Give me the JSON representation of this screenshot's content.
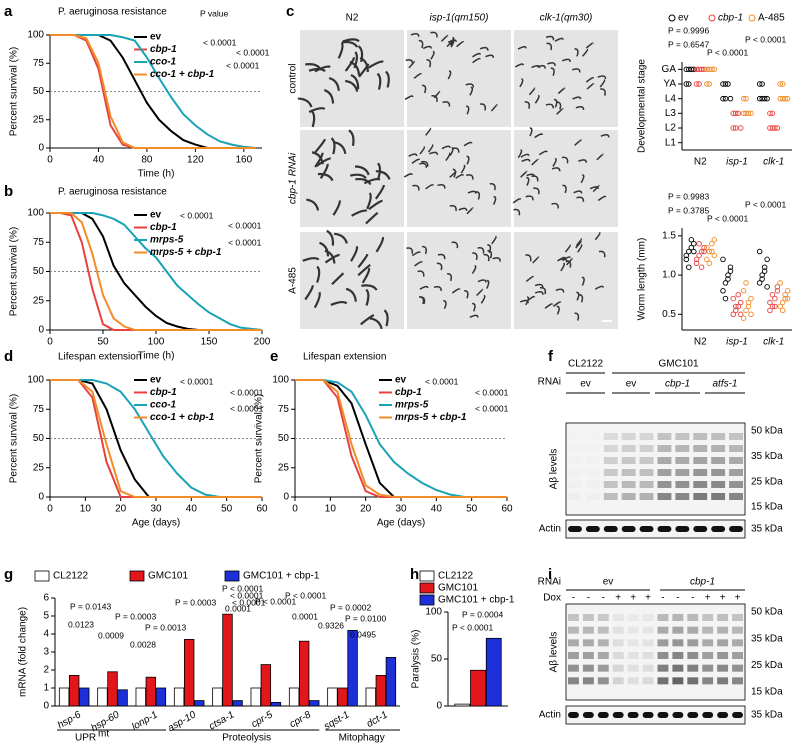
{
  "panel_labels": [
    "a",
    "b",
    "c",
    "d",
    "e",
    "f",
    "g",
    "h",
    "i"
  ],
  "chart_data": [
    {
      "type": "line",
      "title": "P. aeruginosa resistance",
      "xlabel": "Time (h)",
      "ylabel": "Percent survival (%)",
      "x": [
        0,
        10,
        20,
        30,
        40,
        50,
        60,
        70,
        80,
        90,
        100,
        110,
        120,
        130,
        140,
        150,
        160,
        170
      ],
      "series": [
        {
          "name": "ev",
          "color": "#000000",
          "values": [
            100,
            100,
            100,
            100,
            100,
            95,
            80,
            60,
            40,
            25,
            15,
            7,
            3,
            0,
            0,
            0,
            0,
            0
          ]
        },
        {
          "name": "cbp-1",
          "color": "#e8423f",
          "values": [
            100,
            100,
            100,
            95,
            70,
            20,
            3,
            0,
            0,
            0,
            0,
            0,
            0,
            0,
            0,
            0,
            0,
            0
          ]
        },
        {
          "name": "cco-1",
          "color": "#1aa2b5",
          "values": [
            100,
            100,
            100,
            100,
            100,
            100,
            98,
            95,
            80,
            62,
            45,
            30,
            20,
            12,
            6,
            3,
            1,
            0
          ]
        },
        {
          "name": "cco-1 + cbp-1",
          "color": "#f28c28",
          "values": [
            100,
            100,
            100,
            97,
            75,
            28,
            5,
            0,
            0,
            0,
            0,
            0,
            0,
            0,
            0,
            0,
            0,
            0
          ]
        }
      ],
      "xlim": [
        0,
        175
      ],
      "ylim": [
        0,
        100
      ],
      "xticks": [
        0,
        40,
        80,
        120,
        160
      ],
      "yticks": [
        0,
        25,
        50,
        75,
        100
      ],
      "reference_line": 50,
      "annotations": [
        "P value",
        "< 0.0001",
        "< 0.0001",
        "< 0.0001"
      ]
    },
    {
      "type": "line",
      "title": "P. aeruginosa resistance",
      "xlabel": "Time (h)",
      "ylabel": "Percent survival (%)",
      "x": [
        0,
        10,
        20,
        30,
        40,
        50,
        60,
        70,
        80,
        90,
        100,
        110,
        120,
        130,
        140,
        150,
        160,
        170,
        180,
        190,
        200
      ],
      "series": [
        {
          "name": "ev",
          "color": "#000000",
          "values": [
            100,
            100,
            100,
            100,
            95,
            80,
            55,
            40,
            30,
            20,
            12,
            6,
            3,
            1,
            0,
            0,
            0,
            0,
            0,
            0,
            0
          ]
        },
        {
          "name": "cbp-1",
          "color": "#e8423f",
          "values": [
            100,
            100,
            98,
            75,
            35,
            5,
            0,
            0,
            0,
            0,
            0,
            0,
            0,
            0,
            0,
            0,
            0,
            0,
            0,
            0,
            0
          ]
        },
        {
          "name": "mrps-5",
          "color": "#1aa2b5",
          "values": [
            100,
            100,
            100,
            100,
            100,
            98,
            95,
            90,
            80,
            70,
            62,
            50,
            38,
            30,
            22,
            15,
            10,
            5,
            2,
            1,
            0
          ]
        },
        {
          "name": "mrps-5 + cbp-1",
          "color": "#f28c28",
          "values": [
            100,
            100,
            100,
            92,
            65,
            30,
            10,
            3,
            0,
            0,
            0,
            0,
            0,
            0,
            0,
            0,
            0,
            0,
            0,
            0,
            0
          ]
        }
      ],
      "xlim": [
        0,
        200
      ],
      "ylim": [
        0,
        100
      ],
      "xticks": [
        0,
        50,
        100,
        150,
        200
      ],
      "yticks": [
        0,
        25,
        50,
        75,
        100
      ],
      "reference_line": 50,
      "annotations": [
        "< 0.0001",
        "< 0.0001",
        "< 0.0001"
      ]
    },
    {
      "type": "strip",
      "ylabel": "Developmental stage",
      "categories": [
        "N2",
        "isp-1",
        "clk-1"
      ],
      "series": [
        {
          "name": "ev",
          "color": "#000000",
          "values": [
            [
              6,
              6,
              6,
              6,
              5,
              5
            ],
            [
              5,
              5,
              5,
              4,
              4,
              4
            ],
            [
              5,
              5,
              4,
              4,
              4,
              4
            ]
          ]
        },
        {
          "name": "cbp-1",
          "color": "#e8423f",
          "values": [
            [
              6,
              6,
              6,
              6,
              5,
              5
            ],
            [
              3,
              3,
              3,
              2,
              2,
              2
            ],
            [
              3,
              3,
              2,
              2,
              2,
              2
            ]
          ]
        },
        {
          "name": "A-485",
          "color": "#f28c28",
          "values": [
            [
              6,
              6,
              6,
              6,
              5,
              5
            ],
            [
              4,
              4,
              3,
              3,
              3,
              3
            ],
            [
              5,
              5,
              4,
              4,
              4,
              4
            ]
          ]
        }
      ],
      "ylim": [
        0.5,
        6.5
      ],
      "yticks": [
        {
          "value": 1,
          "label": "L1"
        },
        {
          "value": 2,
          "label": "L2"
        },
        {
          "value": 3,
          "label": "L3"
        },
        {
          "value": 4,
          "label": "L4"
        },
        {
          "value": 5,
          "label": "YA"
        },
        {
          "value": 6,
          "label": "GA"
        }
      ],
      "annotations": [
        "P = 0.9996",
        "P = 0.6547",
        "P < 0.0001",
        "P < 0.0001"
      ]
    },
    {
      "type": "strip",
      "ylabel": "Worm length (mm)",
      "categories": [
        "N2",
        "isp-1",
        "clk-1"
      ],
      "series": [
        {
          "name": "ev",
          "color": "#000000",
          "values": [
            [
              1.2,
              1.3,
              1.35,
              1.4,
              1.25,
              1.1,
              1.45,
              1.3
            ],
            [
              0.8,
              0.9,
              1.0,
              1.1,
              1.2,
              0.7,
              0.95,
              1.05
            ],
            [
              0.9,
              1.0,
              1.1,
              1.2,
              1.3,
              0.95,
              1.05,
              0.85
            ]
          ]
        },
        {
          "name": "cbp-1",
          "color": "#e8423f",
          "values": [
            [
              1.15,
              1.25,
              1.3,
              1.35,
              1.2,
              1.4,
              1.1,
              1.3
            ],
            [
              0.5,
              0.55,
              0.6,
              0.65,
              0.7,
              0.6,
              0.75,
              0.5
            ],
            [
              0.55,
              0.6,
              0.7,
              0.8,
              0.65,
              0.75,
              0.6,
              0.85
            ]
          ]
        },
        {
          "name": "A-485",
          "color": "#f28c28",
          "values": [
            [
              1.2,
              1.3,
              1.4,
              1.25,
              1.35,
              1.15,
              1.3,
              1.45
            ],
            [
              0.45,
              0.55,
              0.65,
              0.7,
              0.8,
              0.9,
              0.6,
              0.5
            ],
            [
              0.6,
              0.65,
              0.7,
              0.8,
              0.9,
              0.55,
              0.75,
              0.7
            ]
          ]
        }
      ],
      "ylim": [
        0.3,
        1.6
      ],
      "yticks": [
        0.5,
        {
          "value": 1,
          "label": "1.0"
        },
        1.5
      ],
      "annotations": [
        "P = 0.9983",
        "P = 0.3785",
        "P < 0.0001",
        "P < 0.0001"
      ]
    },
    {
      "type": "line",
      "title": "Lifespan extension",
      "xlabel": "Age (days)",
      "ylabel": "Percent survival (%)",
      "x": [
        0,
        4,
        8,
        12,
        16,
        20,
        24,
        28,
        32,
        36,
        40,
        44,
        48,
        52,
        56,
        60
      ],
      "series": [
        {
          "name": "ev",
          "color": "#000000",
          "values": [
            100,
            100,
            100,
            97,
            75,
            40,
            15,
            0,
            0,
            0,
            0,
            0,
            0,
            0,
            0,
            0
          ]
        },
        {
          "name": "cbp-1",
          "color": "#e8423f",
          "values": [
            100,
            100,
            100,
            85,
            30,
            0,
            0,
            0,
            0,
            0,
            0,
            0,
            0,
            0,
            0,
            0
          ]
        },
        {
          "name": "cco-1",
          "color": "#1aa2b5",
          "values": [
            100,
            100,
            100,
            100,
            97,
            90,
            75,
            55,
            35,
            20,
            8,
            2,
            0,
            0,
            0,
            0
          ]
        },
        {
          "name": "cco-1 + cbp-1",
          "color": "#f28c28",
          "values": [
            100,
            100,
            100,
            90,
            45,
            5,
            0,
            0,
            0,
            0,
            0,
            0,
            0,
            0,
            0,
            0
          ]
        }
      ],
      "xlim": [
        0,
        60
      ],
      "ylim": [
        0,
        100
      ],
      "xticks": [
        0,
        10,
        20,
        30,
        40,
        50,
        60
      ],
      "yticks": [
        0,
        25,
        50,
        75,
        100
      ],
      "reference_line": 50,
      "annotations": [
        "< 0.0001",
        "< 0.0001",
        "< 0.0001"
      ]
    },
    {
      "type": "line",
      "title": "Lifespan extension",
      "xlabel": "Age (days)",
      "ylabel": "Percent survival (%)",
      "x": [
        0,
        4,
        8,
        12,
        16,
        20,
        24,
        28,
        32,
        36,
        40,
        44,
        48,
        52,
        56,
        60
      ],
      "series": [
        {
          "name": "ev",
          "color": "#000000",
          "values": [
            100,
            100,
            100,
            95,
            80,
            45,
            12,
            0,
            0,
            0,
            0,
            0,
            0,
            0,
            0,
            0
          ]
        },
        {
          "name": "cbp-1",
          "color": "#e8423f",
          "values": [
            100,
            100,
            100,
            85,
            35,
            5,
            0,
            0,
            0,
            0,
            0,
            0,
            0,
            0,
            0,
            0
          ]
        },
        {
          "name": "mrps-5",
          "color": "#1aa2b5",
          "values": [
            100,
            100,
            100,
            98,
            90,
            70,
            45,
            30,
            20,
            12,
            6,
            2,
            0,
            0,
            0,
            0
          ]
        },
        {
          "name": "mrps-5 + cbp-1",
          "color": "#f28c28",
          "values": [
            100,
            100,
            100,
            90,
            45,
            10,
            2,
            0,
            0,
            0,
            0,
            0,
            0,
            0,
            0,
            0
          ]
        }
      ],
      "xlim": [
        0,
        60
      ],
      "ylim": [
        0,
        100
      ],
      "xticks": [
        0,
        10,
        20,
        30,
        40,
        50,
        60
      ],
      "yticks": [
        0,
        25,
        50,
        75,
        100
      ],
      "reference_line": 50,
      "annotations": [
        "< 0.0001",
        "< 0.0001",
        "< 0.0001"
      ]
    },
    {
      "type": "bar",
      "ylabel": "mRNA (fold change)",
      "categories": [
        "hsp-6",
        "hsp-60",
        "lonp-1",
        "asp-10",
        "ctsa-1",
        "cpr-5",
        "cpr-8",
        "sqst-1",
        "dct-1"
      ],
      "series": [
        {
          "name": "CL2122",
          "color": "#ffffff",
          "values": [
            1,
            1,
            1,
            1,
            1,
            1,
            1,
            1,
            1
          ]
        },
        {
          "name": "GMC101",
          "color": "#e3161b",
          "values": [
            1.7,
            1.9,
            1.6,
            3.7,
            5.1,
            2.3,
            3.6,
            1.0,
            1.7
          ]
        },
        {
          "name": "GMC101 + cbp-1",
          "color": "#1c2fd8",
          "values": [
            1.0,
            0.9,
            1.0,
            0.3,
            0.3,
            0.2,
            0.3,
            4.2,
            2.7
          ]
        }
      ],
      "ylim": [
        0,
        6
      ],
      "yticks": [
        0,
        1,
        2,
        3,
        4,
        5,
        6
      ],
      "groups": [
        "UPR",
        "mt",
        "Proteolysis",
        "Mitophagy"
      ],
      "annotations": [
        "P = 0.0143",
        "0.0123",
        "P = 0.0003",
        "0.0009",
        "P = 0.0013",
        "0.0028",
        "P = 0.0003",
        "< 0.0001",
        "P < 0.0001",
        "0.0001",
        "P < 0.0001",
        "< 0.0001",
        "P < 0.0001",
        "0.0001",
        "P = 0.0002",
        "0.9326",
        "P = 0.0100",
        "0.0495"
      ]
    },
    {
      "type": "bar",
      "ylabel": "Paralysis (%)",
      "series": [
        {
          "name": "CL2122",
          "color": "#ffffff",
          "values": [
            2
          ]
        },
        {
          "name": "GMC101",
          "color": "#e3161b",
          "values": [
            38
          ]
        },
        {
          "name": "GMC101 + cbp-1",
          "color": "#1c2fd8",
          "values": [
            72
          ]
        }
      ],
      "ylim": [
        0,
        100
      ],
      "yticks": [
        0,
        50,
        100
      ],
      "annotations": [
        "P < 0.0001",
        "P = 0.0004"
      ]
    }
  ],
  "micrographs": {
    "columns": [
      "N2",
      "isp-1(qm150)",
      "clk-1(qm30)"
    ],
    "rows": [
      "control",
      "cbp-1 RNAi",
      "A-485"
    ]
  },
  "blot_f": {
    "strains": [
      "CL2122",
      "GMC101"
    ],
    "rnai": "RNAi",
    "lanes": [
      "ev",
      "ev",
      "cbp-1",
      "atfs-1"
    ],
    "markers": [
      "50 kDa",
      "35 kDa",
      "25 kDa",
      "15 kDa"
    ],
    "ylabel": "Aβ levels",
    "loading": "Actin",
    "loading_marker": "35 kDa"
  },
  "blot_i": {
    "rnai": "RNAi",
    "lanes": [
      "ev",
      "cbp-1"
    ],
    "dox": "Dox",
    "dox_states": [
      "-",
      "-",
      "-",
      "+",
      "+",
      "+",
      "-",
      "-",
      "-",
      "+",
      "+",
      "+"
    ],
    "markers": [
      "50 kDa",
      "35 kDa",
      "25 kDa",
      "15 kDa"
    ],
    "ylabel": "Aβ levels",
    "loading": "Actin",
    "loading_marker": "35 kDa"
  }
}
